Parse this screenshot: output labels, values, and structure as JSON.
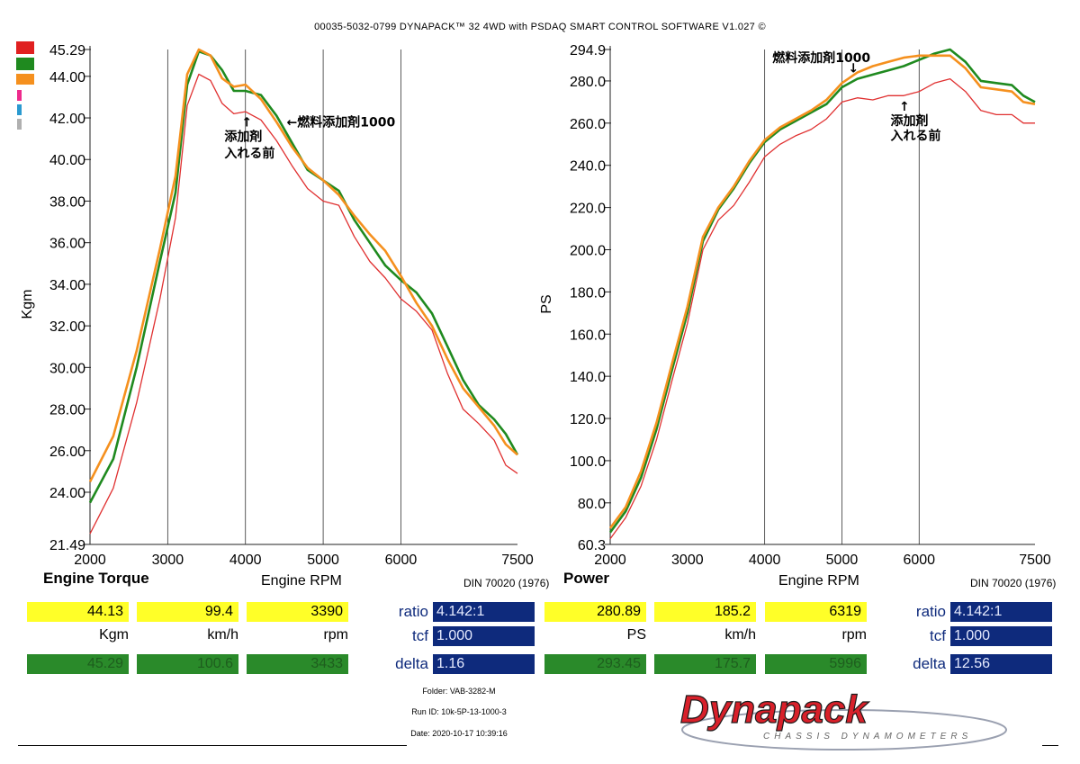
{
  "header": "00035-5032-0799 DYNAPACK™ 32 4WD with PSDAQ SMART CONTROL SOFTWARE V1.027 ©",
  "colors": {
    "red": "#e03030",
    "green": "#1f8a1f",
    "orange": "#f5901e",
    "yellow": "#ffff28",
    "navy": "#0e2a7c"
  },
  "swatches": [
    {
      "color": "#e02020"
    },
    {
      "color": "#1f8a1f"
    },
    {
      "color": "#f5901e"
    },
    {
      "color": "#ee2a8c"
    },
    {
      "color": "#2a9ad0"
    },
    {
      "color": "#b0b0b0"
    }
  ],
  "chart_data": [
    {
      "type": "line",
      "title": "Engine Torque",
      "xlabel": "Engine RPM",
      "ylabel": "Kgm",
      "standard": "DIN 70020 (1976)",
      "xlim": [
        2000,
        7500
      ],
      "ylim": [
        21.49,
        45.29
      ],
      "x_ticks": [
        "2000",
        "3000",
        "4000",
        "5000",
        "6000",
        "7500"
      ],
      "y_ticks": [
        "45.29",
        "44.00",
        "42.00",
        "40.00",
        "38.00",
        "36.00",
        "34.00",
        "32.00",
        "30.00",
        "28.00",
        "26.00",
        "24.00",
        "21.49"
      ],
      "grid": true,
      "annotations": [
        {
          "text": "↑",
          "x": 3950,
          "y": 41.6
        },
        {
          "text": "添加剤",
          "x": 3730,
          "y": 40.9
        },
        {
          "text": "入れる前",
          "x": 3730,
          "y": 40.1
        },
        {
          "text": "←燃料添加剤1000",
          "x": 4530,
          "y": 41.6
        }
      ],
      "series": [
        {
          "color": "#e03030",
          "x": [
            2000,
            2300,
            2600,
            2900,
            3100,
            3250,
            3400,
            3550,
            3700,
            3850,
            4000,
            4200,
            4400,
            4600,
            4800,
            5000,
            5200,
            5400,
            5600,
            5800,
            6000,
            6200,
            6400,
            6600,
            6800,
            7000,
            7200,
            7350,
            7500
          ],
          "y": [
            22.0,
            24.2,
            28.3,
            33.3,
            37.2,
            42.6,
            44.1,
            43.8,
            42.7,
            42.2,
            42.3,
            41.9,
            40.9,
            39.7,
            38.6,
            38.0,
            37.8,
            36.3,
            35.1,
            34.3,
            33.3,
            32.7,
            31.8,
            29.7,
            28.0,
            27.3,
            26.5,
            25.3,
            24.9
          ]
        },
        {
          "color": "#1f8a1f",
          "x": [
            2000,
            2300,
            2600,
            2900,
            3100,
            3250,
            3400,
            3550,
            3700,
            3850,
            4000,
            4200,
            4400,
            4600,
            4800,
            5000,
            5200,
            5400,
            5600,
            5800,
            6000,
            6200,
            6400,
            6600,
            6800,
            7000,
            7200,
            7350,
            7500
          ],
          "y": [
            23.5,
            25.6,
            30.0,
            35.1,
            38.4,
            43.6,
            45.2,
            45.0,
            44.3,
            43.3,
            43.3,
            43.1,
            42.1,
            40.8,
            39.5,
            39.0,
            38.5,
            37.1,
            36.0,
            34.9,
            34.2,
            33.6,
            32.6,
            31.0,
            29.4,
            28.2,
            27.5,
            26.8,
            25.8
          ]
        },
        {
          "color": "#f5901e",
          "x": [
            2000,
            2300,
            2600,
            2900,
            3100,
            3250,
            3400,
            3550,
            3700,
            3850,
            4000,
            4200,
            4400,
            4600,
            4800,
            5000,
            5200,
            5400,
            5600,
            5800,
            6000,
            6200,
            6400,
            6600,
            6800,
            7000,
            7200,
            7350,
            7500
          ],
          "y": [
            24.5,
            26.7,
            30.8,
            35.7,
            39.2,
            44.1,
            45.29,
            45.0,
            43.9,
            43.5,
            43.6,
            42.9,
            41.8,
            40.6,
            39.6,
            39.0,
            38.3,
            37.3,
            36.4,
            35.6,
            34.4,
            33.1,
            32.0,
            30.4,
            29.0,
            28.1,
            27.2,
            26.3,
            25.8
          ]
        }
      ]
    },
    {
      "type": "line",
      "title": "Power",
      "xlabel": "Engine RPM",
      "ylabel": "PS",
      "standard": "DIN 70020 (1976)",
      "xlim": [
        2000,
        7500
      ],
      "ylim": [
        60.3,
        294.9
      ],
      "x_ticks": [
        "2000",
        "3000",
        "4000",
        "5000",
        "6000",
        "7500"
      ],
      "y_ticks": [
        "294.9",
        "280.0",
        "260.0",
        "240.0",
        "220.0",
        "200.0",
        "180.0",
        "160.0",
        "140.0",
        "120.0",
        "100.0",
        "80.0",
        "60.3"
      ],
      "grid": true,
      "annotations": [
        {
          "text": "燃料添加剤1000",
          "x": 4100,
          "y": 289
        },
        {
          "text": "↓",
          "x": 5080,
          "y": 284
        },
        {
          "text": "↑",
          "x": 5740,
          "y": 266
        },
        {
          "text": "添加剤",
          "x": 5630,
          "y": 259
        },
        {
          "text": "入れる前",
          "x": 5630,
          "y": 252
        }
      ],
      "series": [
        {
          "color": "#e03030",
          "x": [
            2000,
            2200,
            2400,
            2600,
            2800,
            3000,
            3200,
            3400,
            3600,
            3800,
            4000,
            4200,
            4400,
            4600,
            4800,
            5000,
            5200,
            5400,
            5600,
            5800,
            6000,
            6200,
            6400,
            6600,
            6800,
            7000,
            7200,
            7350,
            7500
          ],
          "y": [
            63.0,
            73.0,
            88.0,
            110.0,
            138.0,
            165.0,
            200.0,
            214.0,
            221.0,
            232.0,
            244.0,
            250.0,
            254.0,
            257.0,
            262.0,
            270.0,
            272.0,
            271.0,
            273.0,
            273.0,
            275.0,
            279.0,
            281.0,
            275.0,
            266.0,
            264.0,
            264.0,
            260.0,
            260.0
          ]
        },
        {
          "color": "#1f8a1f",
          "x": [
            2000,
            2200,
            2400,
            2600,
            2800,
            3000,
            3200,
            3400,
            3600,
            3800,
            4000,
            4200,
            4400,
            4600,
            4800,
            5000,
            5200,
            5400,
            5600,
            5800,
            6000,
            6200,
            6400,
            6600,
            6800,
            7000,
            7200,
            7350,
            7500
          ],
          "y": [
            66.0,
            76.0,
            92.0,
            115.0,
            143.0,
            170.0,
            204.0,
            219.0,
            229.0,
            241.0,
            251.0,
            257.0,
            261.0,
            265.0,
            269.0,
            277.0,
            281.0,
            283.0,
            285.0,
            287.0,
            290.0,
            293.0,
            294.9,
            289.0,
            280.0,
            279.0,
            278.0,
            273.0,
            270.0
          ]
        },
        {
          "color": "#f5901e",
          "x": [
            2000,
            2200,
            2400,
            2600,
            2800,
            3000,
            3200,
            3400,
            3600,
            3800,
            4000,
            4200,
            4400,
            4600,
            4800,
            5000,
            5200,
            5400,
            5600,
            5800,
            6000,
            6200,
            6400,
            6600,
            6800,
            7000,
            7200,
            7350,
            7500
          ],
          "y": [
            68.0,
            78.0,
            95.0,
            118.0,
            146.0,
            173.0,
            206.0,
            220.0,
            230.0,
            242.0,
            252.0,
            258.0,
            262.0,
            266.0,
            271.0,
            279.0,
            284.0,
            287.0,
            289.0,
            291.0,
            292.0,
            292.0,
            292.0,
            286.0,
            277.0,
            276.0,
            275.0,
            270.0,
            269.0
          ]
        }
      ]
    }
  ],
  "readouts": {
    "left": {
      "yellow": [
        "44.13",
        "99.4",
        "3390"
      ],
      "units": [
        "Kgm",
        "km/h",
        "rpm"
      ],
      "green": [
        "45.29",
        "100.6",
        "3433"
      ]
    },
    "right": {
      "yellow": [
        "280.89",
        "185.2",
        "6319"
      ],
      "units": [
        "PS",
        "km/h",
        "rpm"
      ],
      "green": [
        "293.45",
        "175.7",
        "5996"
      ]
    },
    "left_params": [
      {
        "label": "ratio",
        "value": "4.142:1"
      },
      {
        "label": "tcf",
        "value": "1.000"
      },
      {
        "label": "delta",
        "value": "1.16"
      }
    ],
    "right_params": [
      {
        "label": "ratio",
        "value": "4.142:1"
      },
      {
        "label": "tcf",
        "value": "1.000"
      },
      {
        "label": "delta",
        "value": "12.56"
      }
    ]
  },
  "meta": {
    "folder": "Folder:  VAB-3282-M",
    "run_id": "Run ID:  10k-5P-13-1000-3",
    "date": "Date:  2020-10-17 10:39:16"
  },
  "logo": {
    "brand": "Dynapack",
    "tagline": "CHASSIS DYNAMOMETERS"
  }
}
